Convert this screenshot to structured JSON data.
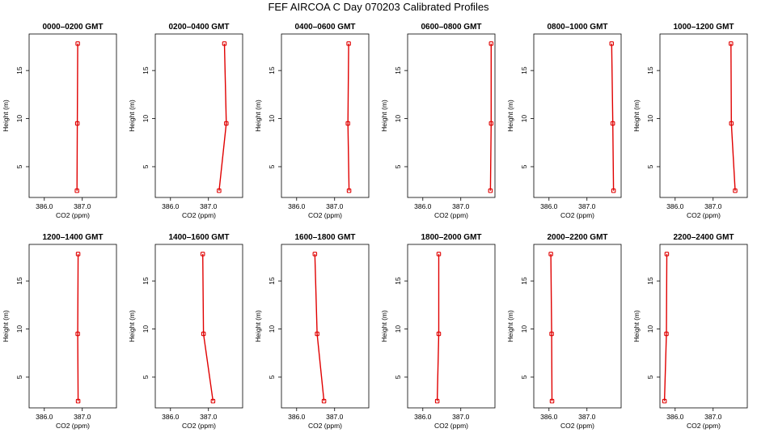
{
  "title": "FEF AIRCOA C  Day 070203  Calibrated Profiles",
  "colors": {
    "line": "#e00000",
    "axis": "#000000",
    "background": "#ffffff"
  },
  "chart_data": {
    "type": "line",
    "layout": "2 rows x 6 columns of small multiples",
    "xlabel": "CO2 (ppm)",
    "ylabel": "Height (m)",
    "xlim": [
      385.6,
      387.9
    ],
    "ylim": [
      1.8,
      18.8
    ],
    "xticks": [
      386.0,
      387.0
    ],
    "xtick_labels": [
      "386.0",
      "387.0"
    ],
    "yticks": [
      5,
      10,
      15
    ],
    "ytick_labels": [
      "5",
      "10",
      "15"
    ],
    "grid": false,
    "legend": "none",
    "panels": [
      {
        "title": "0000–0200 GMT",
        "points": [
          {
            "x": 386.86,
            "y": 2.5
          },
          {
            "x": 386.87,
            "y": 9.5
          },
          {
            "x": 386.88,
            "y": 17.8
          }
        ]
      },
      {
        "title": "0200–0400 GMT",
        "points": [
          {
            "x": 387.28,
            "y": 2.5
          },
          {
            "x": 387.47,
            "y": 9.5
          },
          {
            "x": 387.42,
            "y": 17.8
          }
        ]
      },
      {
        "title": "0400–0600 GMT",
        "points": [
          {
            "x": 387.38,
            "y": 2.5
          },
          {
            "x": 387.35,
            "y": 9.5
          },
          {
            "x": 387.37,
            "y": 17.8
          }
        ]
      },
      {
        "title": "0600–0800 GMT",
        "points": [
          {
            "x": 387.78,
            "y": 2.5
          },
          {
            "x": 387.8,
            "y": 9.5
          },
          {
            "x": 387.8,
            "y": 17.8
          }
        ]
      },
      {
        "title": "0800–1000 GMT",
        "points": [
          {
            "x": 387.7,
            "y": 2.5
          },
          {
            "x": 387.68,
            "y": 9.5
          },
          {
            "x": 387.65,
            "y": 17.8
          }
        ]
      },
      {
        "title": "1000–1200 GMT",
        "points": [
          {
            "x": 387.58,
            "y": 2.5
          },
          {
            "x": 387.48,
            "y": 9.5
          },
          {
            "x": 387.47,
            "y": 17.8
          }
        ]
      },
      {
        "title": "1200–1400 GMT",
        "points": [
          {
            "x": 386.89,
            "y": 2.5
          },
          {
            "x": 386.88,
            "y": 9.5
          },
          {
            "x": 386.89,
            "y": 17.8
          }
        ]
      },
      {
        "title": "1400–1600 GMT",
        "points": [
          {
            "x": 387.12,
            "y": 2.5
          },
          {
            "x": 386.87,
            "y": 9.5
          },
          {
            "x": 386.85,
            "y": 17.8
          }
        ]
      },
      {
        "title": "1600–1800 GMT",
        "points": [
          {
            "x": 386.72,
            "y": 2.5
          },
          {
            "x": 386.54,
            "y": 9.5
          },
          {
            "x": 386.48,
            "y": 17.8
          }
        ]
      },
      {
        "title": "1800–2000 GMT",
        "points": [
          {
            "x": 386.38,
            "y": 2.5
          },
          {
            "x": 386.42,
            "y": 9.5
          },
          {
            "x": 386.42,
            "y": 17.8
          }
        ]
      },
      {
        "title": "2000–2200 GMT",
        "points": [
          {
            "x": 386.08,
            "y": 2.5
          },
          {
            "x": 386.07,
            "y": 9.5
          },
          {
            "x": 386.05,
            "y": 17.8
          }
        ]
      },
      {
        "title": "2200–2400 GMT",
        "points": [
          {
            "x": 385.72,
            "y": 2.5
          },
          {
            "x": 385.77,
            "y": 9.5
          },
          {
            "x": 385.78,
            "y": 17.8
          }
        ]
      }
    ]
  }
}
